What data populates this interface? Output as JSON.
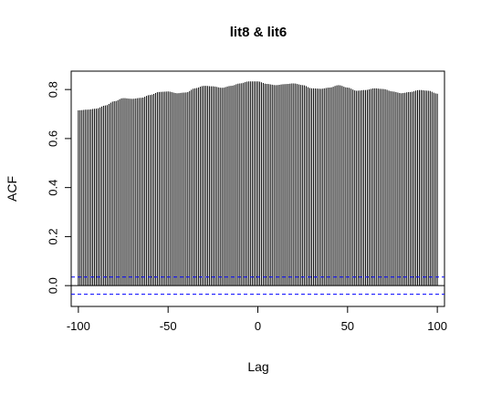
{
  "chart_data": {
    "type": "bar",
    "title": "lit8 & lit6",
    "xlabel": "Lag",
    "ylabel": "ACF",
    "xlim": [
      -104,
      104
    ],
    "ylim": [
      -0.085,
      0.875
    ],
    "x_ticks": [
      -100,
      -50,
      0,
      50,
      100
    ],
    "x_tick_labels": [
      "-100",
      "-50",
      "0",
      "50",
      "100"
    ],
    "y_ticks": [
      0.0,
      0.2,
      0.4,
      0.6,
      0.8
    ],
    "y_tick_labels": [
      "0.0",
      "0.2",
      "0.4",
      "0.6",
      "0.8"
    ],
    "confidence_band": 0.035,
    "grid": false,
    "bar_color": "#000000",
    "band_color": "#0000ff",
    "series": [
      {
        "lag_start": -100,
        "lag_end": 100,
        "acf_curve": [
          [
            -100,
            0.715
          ],
          [
            -95,
            0.718
          ],
          [
            -90,
            0.722
          ],
          [
            -85,
            0.735
          ],
          [
            -80,
            0.752
          ],
          [
            -75,
            0.765
          ],
          [
            -70,
            0.762
          ],
          [
            -65,
            0.766
          ],
          [
            -60,
            0.778
          ],
          [
            -55,
            0.79
          ],
          [
            -50,
            0.792
          ],
          [
            -45,
            0.785
          ],
          [
            -40,
            0.788
          ],
          [
            -35,
            0.805
          ],
          [
            -30,
            0.815
          ],
          [
            -25,
            0.813
          ],
          [
            -20,
            0.807
          ],
          [
            -15,
            0.815
          ],
          [
            -10,
            0.825
          ],
          [
            -5,
            0.833
          ],
          [
            0,
            0.833
          ],
          [
            5,
            0.823
          ],
          [
            10,
            0.818
          ],
          [
            15,
            0.822
          ],
          [
            20,
            0.825
          ],
          [
            25,
            0.818
          ],
          [
            30,
            0.805
          ],
          [
            35,
            0.803
          ],
          [
            40,
            0.808
          ],
          [
            45,
            0.818
          ],
          [
            50,
            0.808
          ],
          [
            55,
            0.795
          ],
          [
            60,
            0.798
          ],
          [
            65,
            0.805
          ],
          [
            70,
            0.802
          ],
          [
            75,
            0.792
          ],
          [
            80,
            0.785
          ],
          [
            85,
            0.79
          ],
          [
            90,
            0.798
          ],
          [
            95,
            0.795
          ],
          [
            100,
            0.783
          ]
        ]
      }
    ]
  }
}
